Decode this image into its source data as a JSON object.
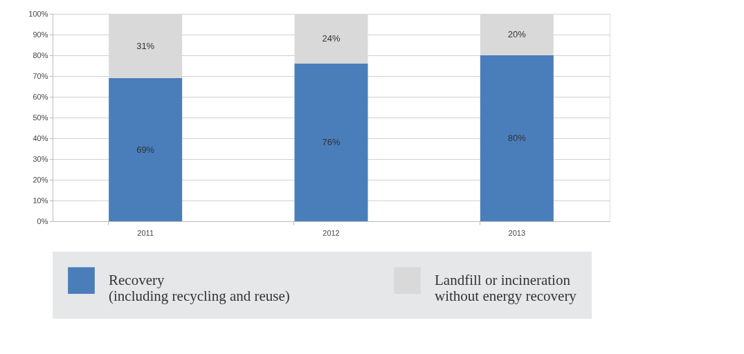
{
  "chart_data": {
    "type": "bar",
    "stacked": true,
    "categories": [
      "2011",
      "2012",
      "2013"
    ],
    "series": [
      {
        "name": "Recovery\n(including recycling and reuse)",
        "color": "#4a7ebb",
        "values": [
          69,
          76,
          80
        ],
        "value_labels": [
          "69%",
          "76%",
          "80%"
        ]
      },
      {
        "name": "Landfill or incineration\nwithout energy recovery",
        "color": "#d9d9d9",
        "values": [
          31,
          24,
          20
        ],
        "value_labels": [
          "31%",
          "24%",
          "20%"
        ]
      }
    ],
    "ylim": [
      0,
      100
    ],
    "yticks": [
      {
        "value": 0,
        "label": "0%"
      },
      {
        "value": 10,
        "label": "10%"
      },
      {
        "value": 20,
        "label": "20%"
      },
      {
        "value": 30,
        "label": "30%"
      },
      {
        "value": 40,
        "label": "40%"
      },
      {
        "value": 50,
        "label": "50%"
      },
      {
        "value": 60,
        "label": "60%"
      },
      {
        "value": 70,
        "label": "70%"
      },
      {
        "value": 80,
        "label": "80%"
      },
      {
        "value": 90,
        "label": "90%"
      },
      {
        "value": 100,
        "label": "100%"
      }
    ],
    "grid": "y",
    "legend": "bottom"
  }
}
